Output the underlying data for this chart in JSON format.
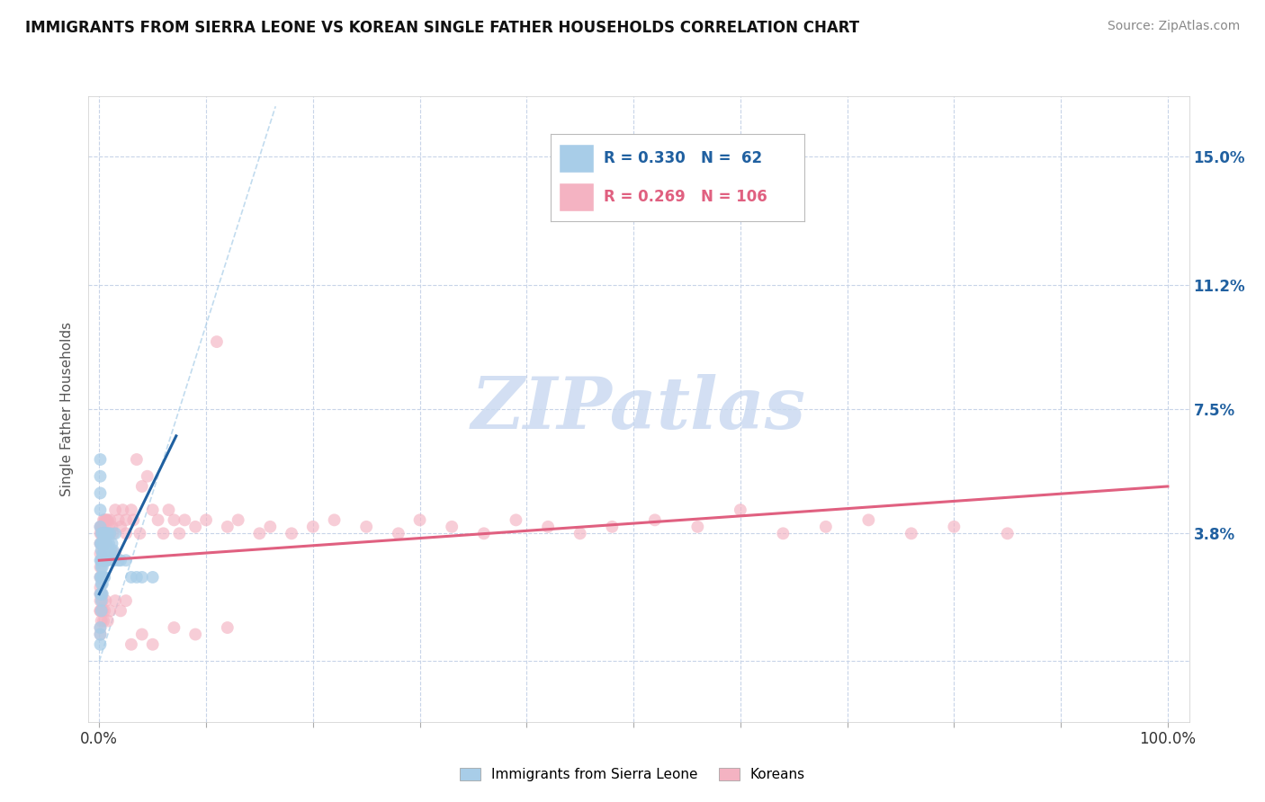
{
  "title": "IMMIGRANTS FROM SIERRA LEONE VS KOREAN SINGLE FATHER HOUSEHOLDS CORRELATION CHART",
  "source": "Source: ZipAtlas.com",
  "ylabel": "Single Father Households",
  "ytick_vals": [
    0.0,
    0.038,
    0.075,
    0.112,
    0.15
  ],
  "ytick_labels": [
    "",
    "3.8%",
    "7.5%",
    "11.2%",
    "15.0%"
  ],
  "xtick_vals": [
    0.0,
    0.1,
    0.2,
    0.3,
    0.4,
    0.5,
    0.6,
    0.7,
    0.8,
    0.9,
    1.0
  ],
  "xtick_labels": [
    "0.0%",
    "",
    "",
    "",
    "",
    "",
    "",
    "",
    "",
    "",
    "100.0%"
  ],
  "xlim": [
    -0.01,
    1.02
  ],
  "ylim": [
    -0.018,
    0.168
  ],
  "legend1_R": "0.330",
  "legend1_N": "62",
  "legend2_R": "0.269",
  "legend2_N": "106",
  "legend1_label": "Immigrants from Sierra Leone",
  "legend2_label": "Koreans",
  "blue_color": "#a8cde8",
  "pink_color": "#f4b3c2",
  "blue_line_color": "#2060a0",
  "pink_line_color": "#e06080",
  "blue_dash_color": "#a8cde8",
  "legend_color_blue": "#2060a0",
  "legend_color_pink": "#e06080",
  "watermark_color": "#c8d8f0",
  "background_color": "#ffffff",
  "grid_color": "#c8d4e8",
  "blue_x": [
    0.001,
    0.001,
    0.001,
    0.001,
    0.001,
    0.001,
    0.001,
    0.001,
    0.001,
    0.001,
    0.002,
    0.002,
    0.002,
    0.002,
    0.002,
    0.002,
    0.002,
    0.002,
    0.002,
    0.002,
    0.003,
    0.003,
    0.003,
    0.003,
    0.003,
    0.003,
    0.003,
    0.003,
    0.004,
    0.004,
    0.004,
    0.004,
    0.004,
    0.005,
    0.005,
    0.005,
    0.005,
    0.006,
    0.006,
    0.006,
    0.007,
    0.007,
    0.007,
    0.008,
    0.008,
    0.009,
    0.01,
    0.01,
    0.011,
    0.012,
    0.013,
    0.014,
    0.015,
    0.018,
    0.02,
    0.025,
    0.03,
    0.035,
    0.04,
    0.05,
    0.001,
    0.001
  ],
  "blue_y": [
    0.06,
    0.055,
    0.05,
    0.045,
    0.04,
    0.035,
    0.03,
    0.025,
    0.02,
    0.01,
    0.038,
    0.035,
    0.033,
    0.03,
    0.028,
    0.025,
    0.023,
    0.02,
    0.018,
    0.015,
    0.038,
    0.035,
    0.032,
    0.03,
    0.028,
    0.025,
    0.023,
    0.02,
    0.038,
    0.035,
    0.032,
    0.03,
    0.025,
    0.038,
    0.035,
    0.03,
    0.025,
    0.038,
    0.035,
    0.03,
    0.038,
    0.035,
    0.03,
    0.038,
    0.03,
    0.035,
    0.038,
    0.032,
    0.033,
    0.035,
    0.033,
    0.03,
    0.038,
    0.03,
    0.03,
    0.03,
    0.025,
    0.025,
    0.025,
    0.025,
    0.005,
    0.008
  ],
  "pink_x": [
    0.001,
    0.001,
    0.001,
    0.001,
    0.001,
    0.001,
    0.001,
    0.001,
    0.001,
    0.001,
    0.002,
    0.002,
    0.002,
    0.002,
    0.002,
    0.002,
    0.003,
    0.003,
    0.003,
    0.003,
    0.004,
    0.004,
    0.004,
    0.004,
    0.005,
    0.005,
    0.005,
    0.006,
    0.006,
    0.007,
    0.007,
    0.008,
    0.009,
    0.01,
    0.01,
    0.012,
    0.013,
    0.015,
    0.015,
    0.018,
    0.02,
    0.022,
    0.025,
    0.025,
    0.03,
    0.032,
    0.035,
    0.038,
    0.04,
    0.045,
    0.05,
    0.055,
    0.06,
    0.065,
    0.07,
    0.075,
    0.08,
    0.09,
    0.1,
    0.11,
    0.12,
    0.13,
    0.15,
    0.16,
    0.18,
    0.2,
    0.22,
    0.25,
    0.28,
    0.3,
    0.33,
    0.36,
    0.39,
    0.42,
    0.45,
    0.48,
    0.52,
    0.56,
    0.6,
    0.64,
    0.68,
    0.72,
    0.76,
    0.8,
    0.85,
    0.001,
    0.001,
    0.001,
    0.002,
    0.002,
    0.003,
    0.003,
    0.004,
    0.005,
    0.006,
    0.008,
    0.01,
    0.015,
    0.02,
    0.025,
    0.03,
    0.04,
    0.05,
    0.07,
    0.09,
    0.12
  ],
  "pink_y": [
    0.04,
    0.038,
    0.035,
    0.032,
    0.028,
    0.025,
    0.02,
    0.015,
    0.01,
    0.008,
    0.04,
    0.038,
    0.035,
    0.03,
    0.025,
    0.02,
    0.04,
    0.035,
    0.03,
    0.025,
    0.042,
    0.038,
    0.035,
    0.03,
    0.042,
    0.038,
    0.032,
    0.042,
    0.035,
    0.042,
    0.038,
    0.042,
    0.04,
    0.042,
    0.038,
    0.04,
    0.038,
    0.045,
    0.032,
    0.042,
    0.04,
    0.045,
    0.042,
    0.038,
    0.045,
    0.042,
    0.06,
    0.038,
    0.052,
    0.055,
    0.045,
    0.042,
    0.038,
    0.045,
    0.042,
    0.038,
    0.042,
    0.04,
    0.042,
    0.095,
    0.04,
    0.042,
    0.038,
    0.04,
    0.038,
    0.04,
    0.042,
    0.04,
    0.038,
    0.042,
    0.04,
    0.038,
    0.042,
    0.04,
    0.038,
    0.04,
    0.042,
    0.04,
    0.045,
    0.038,
    0.04,
    0.042,
    0.038,
    0.04,
    0.038,
    0.022,
    0.018,
    0.015,
    0.02,
    0.012,
    0.018,
    0.015,
    0.012,
    0.015,
    0.018,
    0.012,
    0.015,
    0.018,
    0.015,
    0.018,
    0.005,
    0.008,
    0.005,
    0.01,
    0.008,
    0.01
  ],
  "blue_trend_x0": 0.0,
  "blue_trend_y0": 0.02,
  "blue_trend_x1": 0.072,
  "blue_trend_y1": 0.067,
  "pink_trend_x0": 0.0,
  "pink_trend_y0": 0.03,
  "pink_trend_x1": 1.0,
  "pink_trend_y1": 0.052,
  "diag_line_x0": 0.0,
  "diag_line_y0": 0.0,
  "diag_line_x1": 0.165,
  "diag_line_y1": 0.165
}
